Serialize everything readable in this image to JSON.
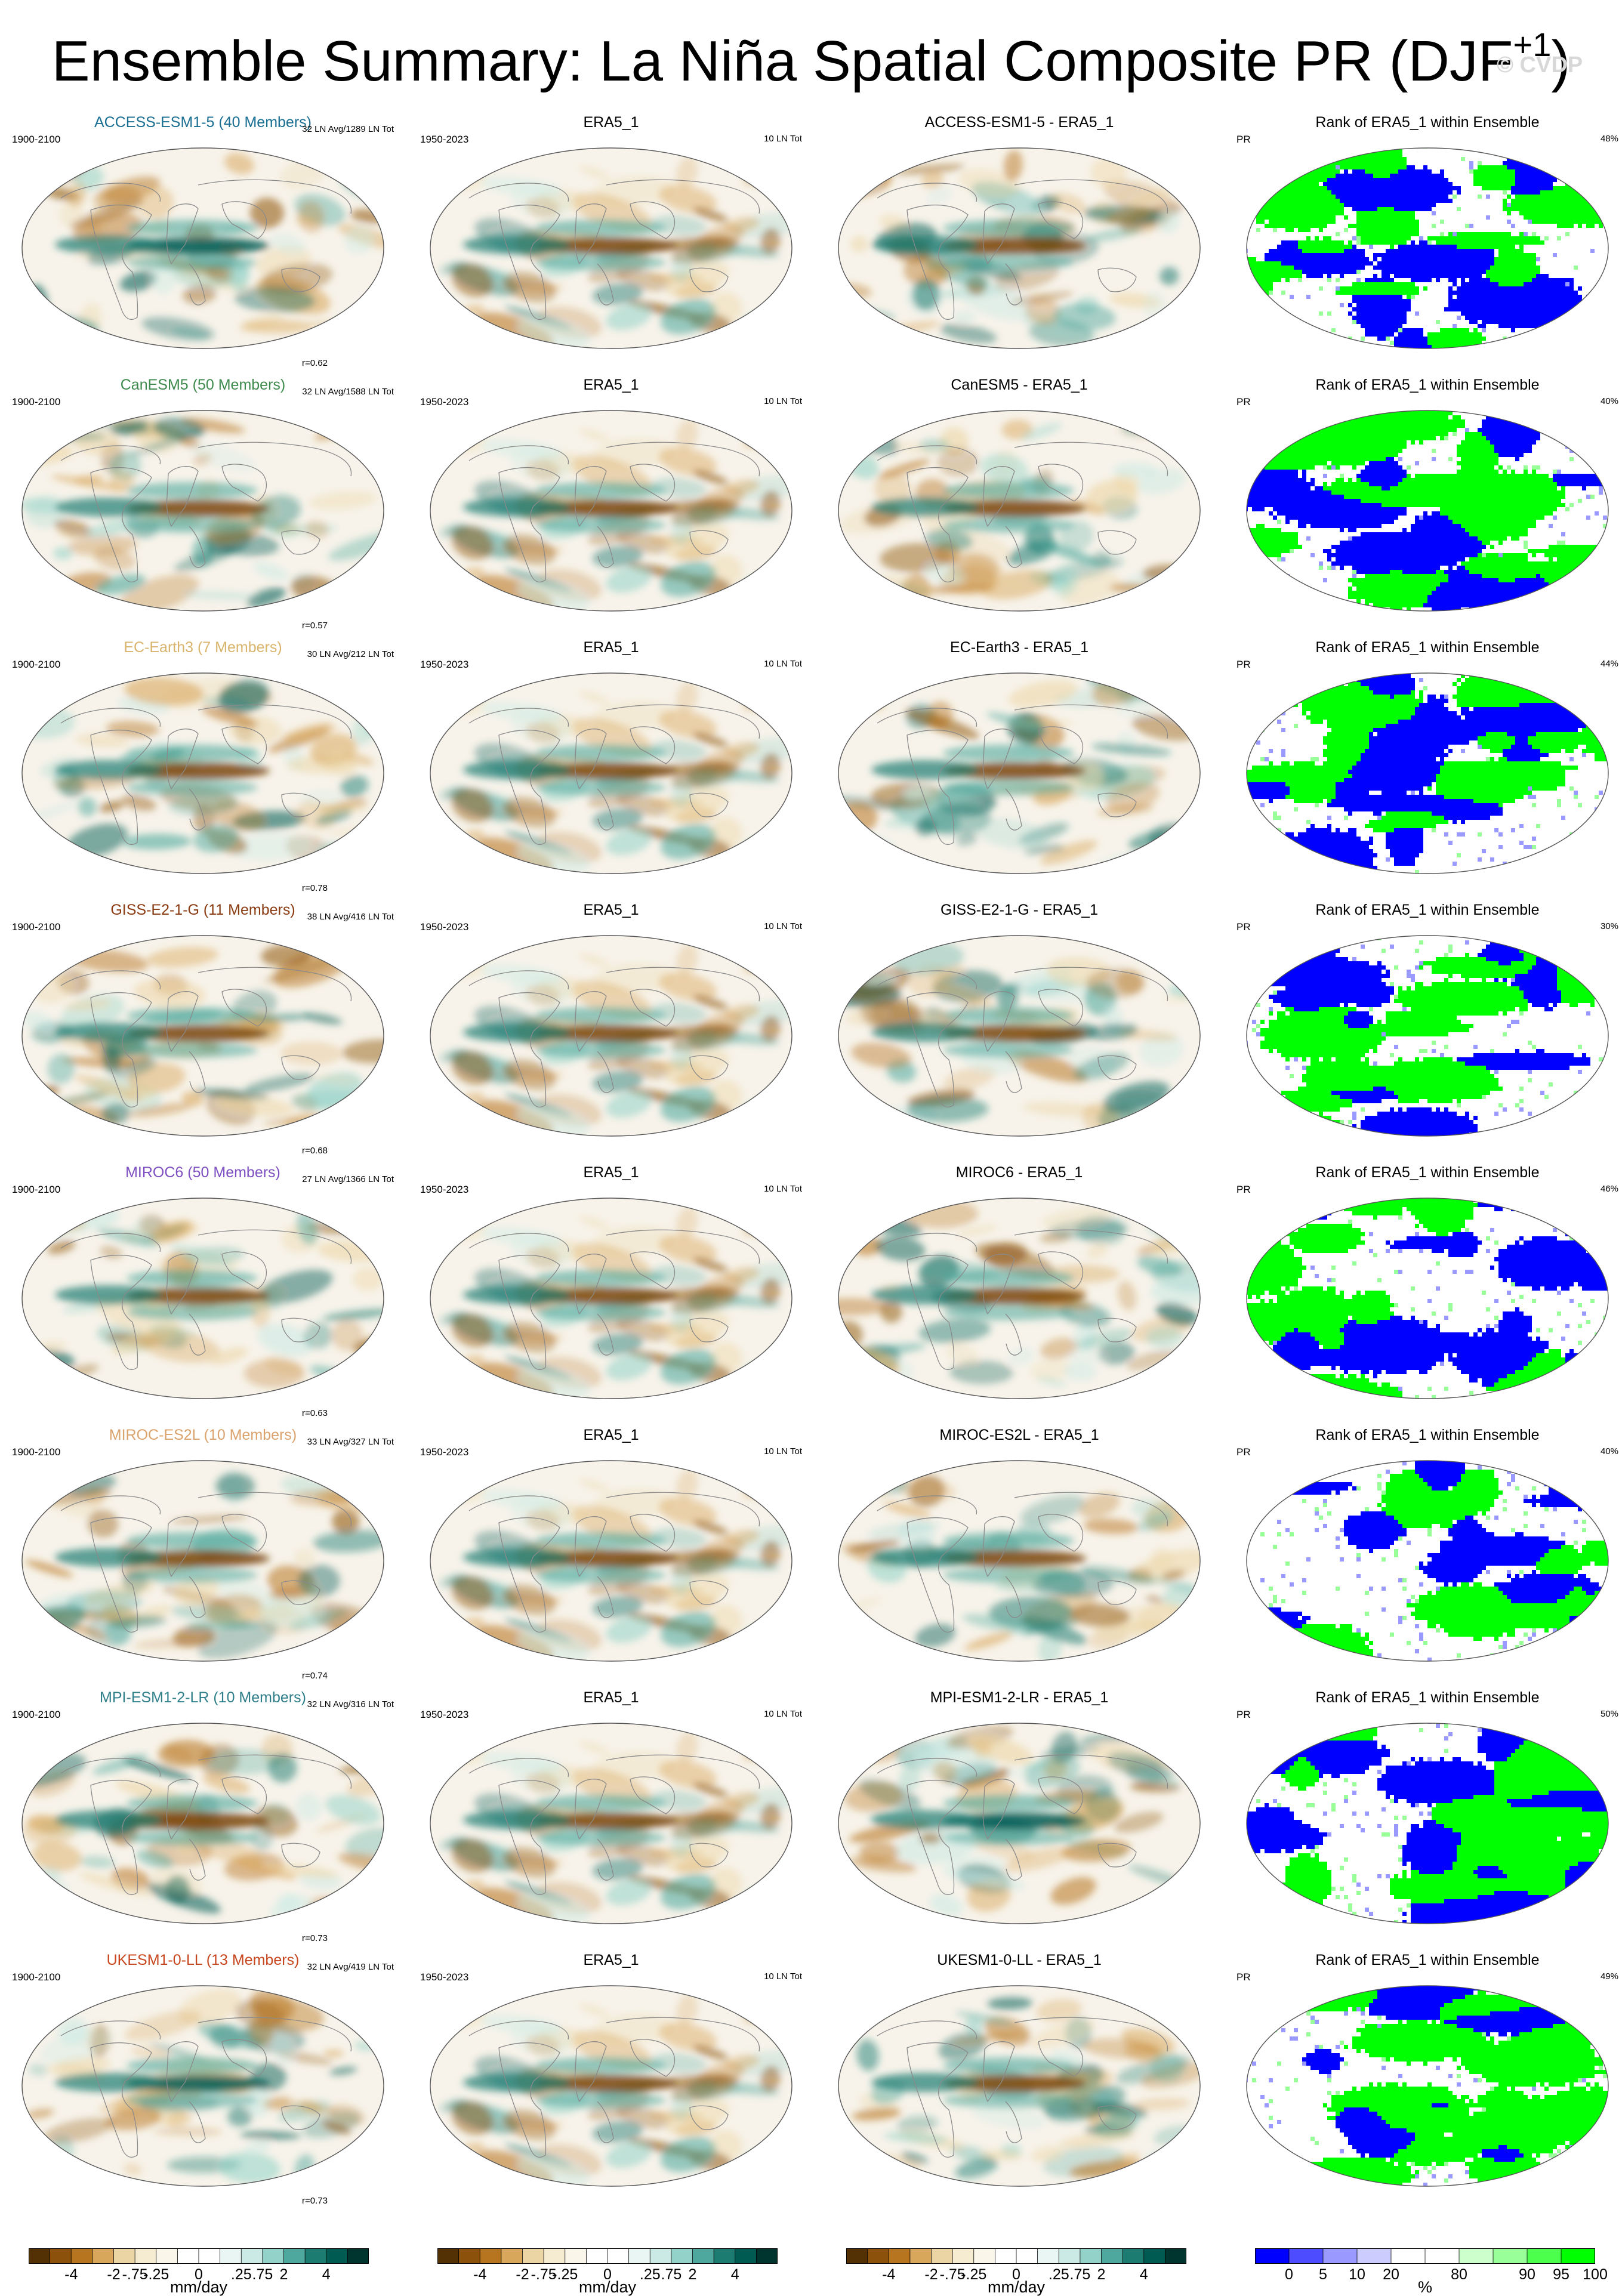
{
  "figure": {
    "title": "Ensemble Summary: La Niña Spatial Composite PR (DJF",
    "title_sup": "+1",
    "title_close": ")",
    "watermark": "© CVDP"
  },
  "rows": [
    {
      "model": "ACCESS-ESM1-5 (40 Members)",
      "model_color": "#1a6f93",
      "period": "1900-2100",
      "counts": "32 LN Avg/1289 LN Tot",
      "r": "r=0.62",
      "obs_title": "ERA5_1",
      "obs_period": "1950-2023",
      "obs_count": "10 LN Tot",
      "diff_title": "ACCESS-ESM1-5 - ERA5_1",
      "rank_title": "Rank of ERA5_1 within Ensemble",
      "rank_var": "PR",
      "rank_pct": "48%"
    },
    {
      "model": "CanESM5 (50 Members)",
      "model_color": "#3d8a4c",
      "period": "1900-2100",
      "counts": "32 LN Avg/1588 LN Tot",
      "r": "r=0.57",
      "obs_title": "ERA5_1",
      "obs_period": "1950-2023",
      "obs_count": "10 LN Tot",
      "diff_title": "CanESM5 - ERA5_1",
      "rank_title": "Rank of ERA5_1 within Ensemble",
      "rank_var": "PR",
      "rank_pct": "40%"
    },
    {
      "model": "EC-Earth3 (7 Members)",
      "model_color": "#d9b46c",
      "period": "1900-2100",
      "counts": "30 LN Avg/212 LN Tot",
      "r": "r=0.78",
      "obs_title": "ERA5_1",
      "obs_period": "1950-2023",
      "obs_count": "10 LN Tot",
      "diff_title": "EC-Earth3 - ERA5_1",
      "rank_title": "Rank of ERA5_1 within Ensemble",
      "rank_var": "PR",
      "rank_pct": "44%"
    },
    {
      "model": "GISS-E2-1-G (11 Members)",
      "model_color": "#8a3b12",
      "period": "1900-2100",
      "counts": "38 LN Avg/416 LN Tot",
      "r": "r=0.68",
      "obs_title": "ERA5_1",
      "obs_period": "1950-2023",
      "obs_count": "10 LN Tot",
      "diff_title": "GISS-E2-1-G - ERA5_1",
      "rank_title": "Rank of ERA5_1 within Ensemble",
      "rank_var": "PR",
      "rank_pct": "30%"
    },
    {
      "model": "MIROC6 (50 Members)",
      "model_color": "#7d4fc1",
      "period": "1900-2100",
      "counts": "27 LN Avg/1366 LN Tot",
      "r": "r=0.63",
      "obs_title": "ERA5_1",
      "obs_period": "1950-2023",
      "obs_count": "10 LN Tot",
      "diff_title": "MIROC6 - ERA5_1",
      "rank_title": "Rank of ERA5_1 within Ensemble",
      "rank_var": "PR",
      "rank_pct": "46%"
    },
    {
      "model": "MIROC-ES2L (10 Members)",
      "model_color": "#dba36e",
      "period": "1900-2100",
      "counts": "33 LN Avg/327 LN Tot",
      "r": "r=0.74",
      "obs_title": "ERA5_1",
      "obs_period": "1950-2023",
      "obs_count": "10 LN Tot",
      "diff_title": "MIROC-ES2L - ERA5_1",
      "rank_title": "Rank of ERA5_1 within Ensemble",
      "rank_var": "PR",
      "rank_pct": "40%"
    },
    {
      "model": "MPI-ESM1-2-LR (10 Members)",
      "model_color": "#2f7f8a",
      "period": "1900-2100",
      "counts": "32 LN Avg/316 LN Tot",
      "r": "r=0.73",
      "obs_title": "ERA5_1",
      "obs_period": "1950-2023",
      "obs_count": "10 LN Tot",
      "diff_title": "MPI-ESM1-2-LR - ERA5_1",
      "rank_title": "Rank of ERA5_1 within Ensemble",
      "rank_var": "PR",
      "rank_pct": "50%"
    },
    {
      "model": "UKESM1-0-LL (13 Members)",
      "model_color": "#c8471f",
      "period": "1900-2100",
      "counts": "32 LN Avg/419 LN Tot",
      "r": "r=0.73",
      "obs_title": "ERA5_1",
      "obs_period": "1950-2023",
      "obs_count": "10 LN Tot",
      "diff_title": "UKESM1-0-LL - ERA5_1",
      "rank_title": "Rank of ERA5_1 within Ensemble",
      "rank_var": "PR",
      "rank_pct": "49%"
    }
  ],
  "colorbars": {
    "pr": {
      "labels": [
        "-4",
        "-2",
        "-.75",
        "-.25",
        "0",
        ".25",
        ".75",
        "2",
        "4"
      ],
      "unit": "mm/day",
      "colors": [
        "#543005",
        "#8c510a",
        "#b8751f",
        "#d9a75c",
        "#ecd5a4",
        "#f6ecd2",
        "#fbf6ea",
        "#ffffff",
        "#ffffff",
        "#eaf6f4",
        "#cbeae5",
        "#93d2c8",
        "#4fa89d",
        "#1d7c72",
        "#005b52",
        "#00352f"
      ]
    },
    "rank": {
      "labels": [
        "0",
        "5",
        "10",
        "20",
        "80",
        "90",
        "95",
        "100"
      ],
      "unit": "%",
      "colors": [
        "#0000ff",
        "#4d4dff",
        "#9999ff",
        "#ccccff",
        "#ffffff",
        "#ffffff",
        "#ccffcc",
        "#99ff99",
        "#4dff4d",
        "#00ff00"
      ]
    }
  },
  "chart_data": [
    {
      "type": "heatmap",
      "panel": "model composite",
      "projection": "Robinson",
      "variable": "PR",
      "season": "DJF+1",
      "colorbar_unit": "mm/day",
      "colorbar_levels": [
        "-4",
        "-2",
        "-.75",
        "-.25",
        "0",
        ".25",
        ".75",
        "2",
        "4"
      ],
      "pattern_correlation_with_ERA5_1": [
        0.62,
        0.57,
        0.78,
        0.68,
        0.63,
        0.74,
        0.73,
        0.73
      ]
    },
    {
      "type": "heatmap",
      "panel": "ERA5_1 observed composite",
      "projection": "Robinson",
      "colorbar_unit": "mm/day"
    },
    {
      "type": "heatmap",
      "panel": "model minus ERA5_1",
      "projection": "Robinson",
      "colorbar_unit": "mm/day"
    },
    {
      "type": "heatmap",
      "panel": "Rank of ERA5_1 within Ensemble",
      "projection": "Robinson",
      "colorbar_unit": "%",
      "colorbar_levels": [
        "0",
        "5",
        "10",
        "20",
        "80",
        "90",
        "95",
        "100"
      ],
      "percent_area_displayed": [
        48,
        40,
        44,
        30,
        46,
        40,
        50,
        49
      ]
    }
  ]
}
